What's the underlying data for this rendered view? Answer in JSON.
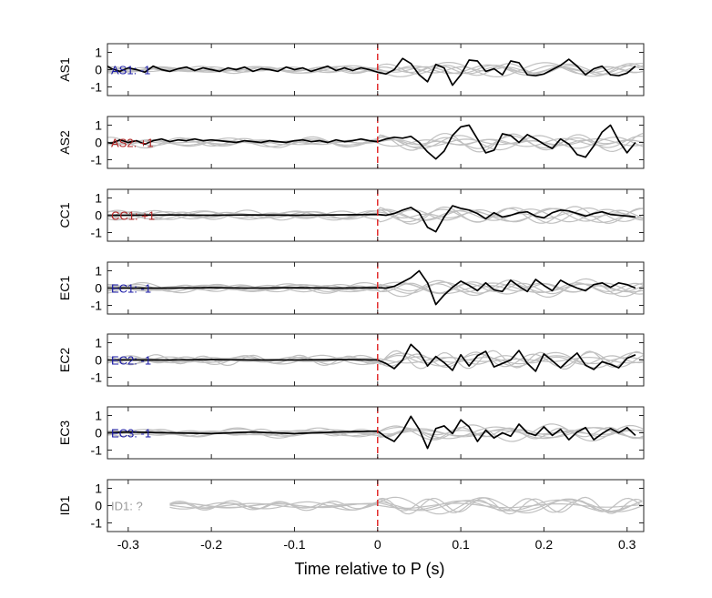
{
  "chart_data": {
    "type": "line",
    "xlabel": "Time relative to P (s)",
    "xlim": [
      -0.325,
      0.32
    ],
    "ylim": [
      -1.5,
      1.5
    ],
    "xticks": [
      -0.3,
      -0.2,
      -0.1,
      0,
      0.1,
      0.2,
      0.3
    ],
    "xtick_labels": [
      "-0.3",
      "-0.2",
      "-0.1",
      "0",
      "0.1",
      "0.2",
      "0.3"
    ],
    "yticks": [
      -1,
      0,
      1
    ],
    "ytick_labels": [
      "-1",
      "0",
      "1"
    ],
    "marker_line": {
      "x": 0,
      "color": "#e02020",
      "style": "dashed"
    },
    "colors": {
      "trace": "#000000",
      "background_traces": "#c0c0c0",
      "negative_label": "#1a1aa6",
      "positive_label": "#b22222",
      "unknown_label": "#9a9a9a"
    },
    "panels": [
      {
        "ylabel": "AS1",
        "annotation": "AS1: -1",
        "annotation_color": "#1a1aa6",
        "trace": {
          "x": [
            -0.325,
            -0.32,
            -0.31,
            -0.3,
            -0.29,
            -0.28,
            -0.27,
            -0.26,
            -0.25,
            -0.24,
            -0.23,
            -0.22,
            -0.21,
            -0.2,
            -0.19,
            -0.18,
            -0.17,
            -0.16,
            -0.15,
            -0.14,
            -0.13,
            -0.12,
            -0.11,
            -0.1,
            -0.09,
            -0.08,
            -0.07,
            -0.06,
            -0.05,
            -0.04,
            -0.03,
            -0.02,
            -0.01,
            0,
            0.01,
            0.02,
            0.03,
            0.04,
            0.05,
            0.06,
            0.07,
            0.08,
            0.09,
            0.1,
            0.11,
            0.12,
            0.13,
            0.14,
            0.15,
            0.16,
            0.17,
            0.18,
            0.19,
            0.2,
            0.21,
            0.22,
            0.23,
            0.24,
            0.25,
            0.26,
            0.27,
            0.28,
            0.29,
            0.3,
            0.31
          ],
          "y": [
            0.2,
            0.05,
            -0.1,
            0.1,
            0.0,
            -0.15,
            0.2,
            0.0,
            -0.1,
            0.05,
            0.15,
            -0.05,
            0.1,
            0.0,
            -0.1,
            0.1,
            0.0,
            0.15,
            -0.1,
            0.05,
            0.0,
            -0.1,
            0.15,
            0.0,
            0.1,
            -0.1,
            0.05,
            0.2,
            -0.05,
            0.1,
            -0.05,
            0.1,
            0.0,
            -0.15,
            -0.25,
            0.0,
            0.65,
            0.35,
            -0.3,
            -0.7,
            0.3,
            0.1,
            -0.9,
            -0.3,
            0.55,
            0.5,
            -0.1,
            0.05,
            -0.3,
            0.5,
            0.4,
            -0.3,
            -0.35,
            -0.25,
            0.0,
            0.25,
            0.6,
            0.2,
            -0.3,
            0.05,
            0.2,
            -0.3,
            -0.35,
            -0.2,
            0.2
          ]
        }
      },
      {
        "ylabel": "AS2",
        "annotation": "AS2: +1",
        "annotation_color": "#b22222",
        "trace": {
          "x": [
            -0.325,
            -0.32,
            -0.31,
            -0.3,
            -0.29,
            -0.28,
            -0.27,
            -0.26,
            -0.25,
            -0.24,
            -0.23,
            -0.22,
            -0.21,
            -0.2,
            -0.19,
            -0.18,
            -0.17,
            -0.16,
            -0.15,
            -0.14,
            -0.13,
            -0.12,
            -0.11,
            -0.1,
            -0.09,
            -0.08,
            -0.07,
            -0.06,
            -0.05,
            -0.04,
            -0.03,
            -0.02,
            -0.01,
            0,
            0.01,
            0.02,
            0.03,
            0.04,
            0.05,
            0.06,
            0.07,
            0.08,
            0.09,
            0.1,
            0.11,
            0.12,
            0.13,
            0.14,
            0.15,
            0.16,
            0.17,
            0.18,
            0.19,
            0.2,
            0.21,
            0.22,
            0.23,
            0.24,
            0.25,
            0.26,
            0.27,
            0.28,
            0.29,
            0.3,
            0.31
          ],
          "y": [
            0.0,
            -0.05,
            0.15,
            0.0,
            0.1,
            -0.1,
            0.1,
            0.2,
            0.05,
            0.15,
            0.1,
            0.2,
            0.1,
            0.15,
            0.1,
            0.05,
            0.0,
            0.1,
            0.05,
            0.0,
            0.1,
            0.05,
            0.0,
            0.1,
            0.15,
            0.05,
            0.1,
            0.0,
            0.15,
            0.05,
            0.1,
            0.2,
            0.1,
            0.05,
            0.2,
            0.3,
            0.25,
            0.35,
            0.0,
            -0.55,
            -0.95,
            -0.5,
            0.4,
            0.9,
            1.0,
            0.2,
            -0.6,
            -0.45,
            0.5,
            0.4,
            0.0,
            0.45,
            0.2,
            -0.1,
            -0.35,
            0.2,
            -0.1,
            -0.7,
            -0.85,
            -0.2,
            0.6,
            1.0,
            0.1,
            -0.6,
            0.0
          ]
        }
      },
      {
        "ylabel": "CC1",
        "annotation": "CC1: +1",
        "annotation_color": "#b22222",
        "trace": {
          "x": [
            -0.325,
            -0.3,
            -0.25,
            -0.2,
            -0.15,
            -0.1,
            -0.05,
            0,
            0.01,
            0.02,
            0.03,
            0.04,
            0.05,
            0.06,
            0.07,
            0.08,
            0.09,
            0.1,
            0.11,
            0.12,
            0.13,
            0.14,
            0.15,
            0.16,
            0.17,
            0.18,
            0.19,
            0.2,
            0.21,
            0.22,
            0.23,
            0.24,
            0.25,
            0.26,
            0.27,
            0.28,
            0.29,
            0.3,
            0.31
          ],
          "y": [
            0.0,
            0.0,
            0.02,
            0.0,
            0.02,
            0.0,
            0.02,
            0.05,
            0.0,
            0.1,
            0.3,
            0.45,
            0.15,
            -0.7,
            -0.95,
            -0.1,
            0.55,
            0.4,
            0.3,
            0.1,
            -0.2,
            0.15,
            -0.1,
            0.0,
            0.15,
            0.2,
            -0.05,
            -0.15,
            0.15,
            0.3,
            0.25,
            0.1,
            -0.05,
            0.1,
            0.2,
            0.05,
            0.0,
            -0.05,
            -0.1
          ]
        }
      },
      {
        "ylabel": "EC1",
        "annotation": "EC1: -1",
        "annotation_color": "#1a1aa6",
        "trace": {
          "x": [
            -0.325,
            -0.3,
            -0.25,
            -0.2,
            -0.15,
            -0.1,
            -0.05,
            0,
            0.01,
            0.02,
            0.03,
            0.04,
            0.05,
            0.06,
            0.07,
            0.08,
            0.09,
            0.1,
            0.11,
            0.12,
            0.13,
            0.14,
            0.15,
            0.16,
            0.17,
            0.18,
            0.19,
            0.2,
            0.21,
            0.22,
            0.23,
            0.24,
            0.25,
            0.26,
            0.27,
            0.28,
            0.29,
            0.3,
            0.31
          ],
          "y": [
            0.0,
            0.0,
            0.0,
            0.02,
            0.0,
            0.02,
            0.0,
            0.02,
            0.0,
            0.1,
            0.35,
            0.6,
            1.0,
            0.3,
            -0.95,
            -0.4,
            0.05,
            0.4,
            0.15,
            -0.15,
            0.3,
            -0.1,
            -0.2,
            0.45,
            0.1,
            -0.2,
            0.5,
            0.15,
            -0.15,
            0.45,
            0.2,
            0.0,
            -0.15,
            0.2,
            0.3,
            0.05,
            0.3,
            0.2,
            0.0
          ]
        }
      },
      {
        "ylabel": "EC2",
        "annotation": "EC2: -1",
        "annotation_color": "#1a1aa6",
        "trace": {
          "x": [
            -0.325,
            -0.3,
            -0.25,
            -0.2,
            -0.15,
            -0.1,
            -0.05,
            0,
            0.01,
            0.02,
            0.03,
            0.04,
            0.05,
            0.06,
            0.07,
            0.08,
            0.09,
            0.1,
            0.11,
            0.12,
            0.13,
            0.14,
            0.15,
            0.16,
            0.17,
            0.18,
            0.19,
            0.2,
            0.21,
            0.22,
            0.23,
            0.24,
            0.25,
            0.26,
            0.27,
            0.28,
            0.29,
            0.3,
            0.31
          ],
          "y": [
            0.0,
            0.0,
            0.0,
            0.02,
            0.0,
            0.0,
            0.02,
            0.0,
            -0.2,
            -0.5,
            0.0,
            0.9,
            0.45,
            -0.35,
            0.2,
            -0.15,
            -0.6,
            0.3,
            -0.35,
            0.25,
            0.5,
            -0.4,
            -0.2,
            0.0,
            0.55,
            -0.2,
            -0.65,
            0.35,
            -0.05,
            -0.45,
            0.0,
            0.4,
            -0.3,
            -0.55,
            -0.1,
            -0.25,
            -0.45,
            0.1,
            0.3
          ]
        }
      },
      {
        "ylabel": "EC3",
        "annotation": "EC3: -1",
        "annotation_color": "#1a1aa6",
        "trace": {
          "x": [
            -0.325,
            -0.3,
            -0.25,
            -0.2,
            -0.15,
            -0.1,
            -0.05,
            0,
            0.01,
            0.02,
            0.03,
            0.04,
            0.05,
            0.06,
            0.07,
            0.08,
            0.09,
            0.1,
            0.11,
            0.12,
            0.13,
            0.14,
            0.15,
            0.16,
            0.17,
            0.18,
            0.19,
            0.2,
            0.21,
            0.22,
            0.23,
            0.24,
            0.25,
            0.26,
            0.27,
            0.28,
            0.29,
            0.3,
            0.31
          ],
          "y": [
            0.0,
            0.05,
            0.0,
            -0.05,
            0.05,
            -0.05,
            0.05,
            0.1,
            -0.25,
            -0.5,
            0.1,
            0.95,
            0.2,
            -0.9,
            0.25,
            0.4,
            -0.05,
            0.75,
            0.35,
            -0.5,
            0.15,
            -0.3,
            0.0,
            -0.2,
            0.5,
            0.0,
            -0.15,
            0.35,
            -0.15,
            0.2,
            -0.4,
            0.05,
            0.3,
            -0.4,
            -0.05,
            0.25,
            0.0,
            0.3,
            -0.15
          ]
        }
      },
      {
        "ylabel": "ID1",
        "annotation": "ID1: ?",
        "annotation_color": "#9a9a9a",
        "trace": null
      }
    ]
  }
}
